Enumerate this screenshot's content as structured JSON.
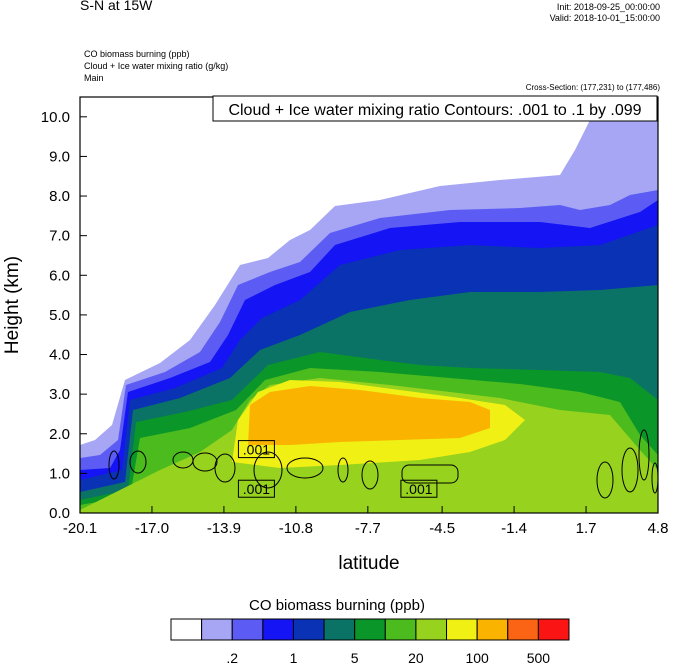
{
  "header": {
    "title": "S-N at 15W",
    "init": "Init: 2018-09-25_00:00:00",
    "valid": "Valid: 2018-10-01_15:00:00",
    "fields": [
      "CO biomass burning   (ppb)",
      "Cloud + Ice water mixing ratio   (g/kg)",
      "Main"
    ],
    "cross_section": "Cross-Section: (177,231) to (177,486)"
  },
  "chart_data": {
    "type": "contour",
    "title": "Cloud + Ice water mixing ratio Contours: .001 to .1 by .099",
    "xlabel": "latitude",
    "ylabel": "Height (km)",
    "xlim": [
      -20.1,
      4.8
    ],
    "ylim": [
      0.0,
      10.5
    ],
    "xticks": [
      "-20.1",
      "-17.0",
      "-13.9",
      "-10.8",
      "-7.7",
      "-4.5",
      "-1.4",
      "1.7",
      "4.8"
    ],
    "yticks": [
      "0.0",
      "1.0",
      "2.0",
      "3.0",
      "4.0",
      "5.0",
      "6.0",
      "7.0",
      "8.0",
      "9.0",
      "10.0"
    ],
    "contour_labels": [
      {
        "text": ".001",
        "lat": -12.5,
        "height": 1.6
      },
      {
        "text": ".001",
        "lat": -12.5,
        "height": 0.6
      },
      {
        "text": ".001",
        "lat": -5.5,
        "height": 0.6
      }
    ],
    "shaded_field": {
      "name": "CO biomass burning",
      "units": "ppb",
      "colors": [
        "#ffffff",
        "#a6a6f5",
        "#5c5cf5",
        "#1414f5",
        "#0a32b4",
        "#0a7366",
        "#0a9628",
        "#4bbb1e",
        "#96d21e",
        "#f0f014",
        "#fab400",
        "#fa6414",
        "#fa1414"
      ]
    },
    "colorbar": {
      "title": "CO biomass burning  (ppb)",
      "labels": [
        ".2",
        "1",
        "5",
        "20",
        "100",
        "500"
      ]
    }
  }
}
